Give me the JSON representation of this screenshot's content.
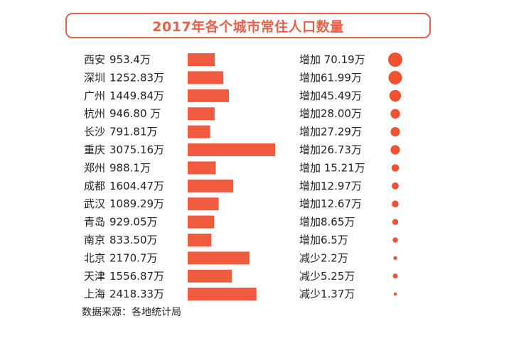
{
  "title": "2017年各个城市常住人口数量",
  "source_note": "数据来源：各地统计局",
  "colors": {
    "accent": "#e8604a",
    "bar": "#f05a3f",
    "dot": "#ef5131"
  },
  "chart_data": {
    "type": "bar",
    "orientation": "horizontal",
    "unit": "万",
    "categories": [
      "西安",
      "深圳",
      "广州",
      "杭州",
      "长沙",
      "重庆",
      "郑州",
      "成都",
      "武汉",
      "青岛",
      "南京",
      "北京",
      "天津",
      "上海"
    ],
    "value_labels": [
      "953.4万",
      "1252.83万",
      "1449.84万",
      "946.80 万",
      "791.81万",
      "3075.16万",
      "988.1万",
      "1604.47万",
      "1089.29万",
      "929.05万",
      "833.50万",
      "2170.7万",
      "1556.87万",
      "2418.33万"
    ],
    "values": [
      953.4,
      1252.83,
      1449.84,
      946.8,
      791.81,
      3075.16,
      988.1,
      1604.47,
      1089.29,
      929.05,
      833.5,
      2170.7,
      1556.87,
      2418.33
    ],
    "change_labels": [
      "增加 70.19万",
      "增加61.99万",
      "增加45.49万",
      "增加28.00万",
      "增加27.29万",
      "增加26.73万",
      "增加 15.21万",
      "增加12.97万",
      "增加12.67万",
      "增加8.65万",
      "增加6.5万",
      "减少2.2万",
      "减少5.25万",
      "减少1.37万"
    ],
    "changes": [
      70.19,
      61.99,
      45.49,
      28.0,
      27.29,
      26.73,
      15.21,
      12.97,
      12.67,
      8.65,
      6.5,
      -2.2,
      -5.25,
      -1.37
    ]
  }
}
